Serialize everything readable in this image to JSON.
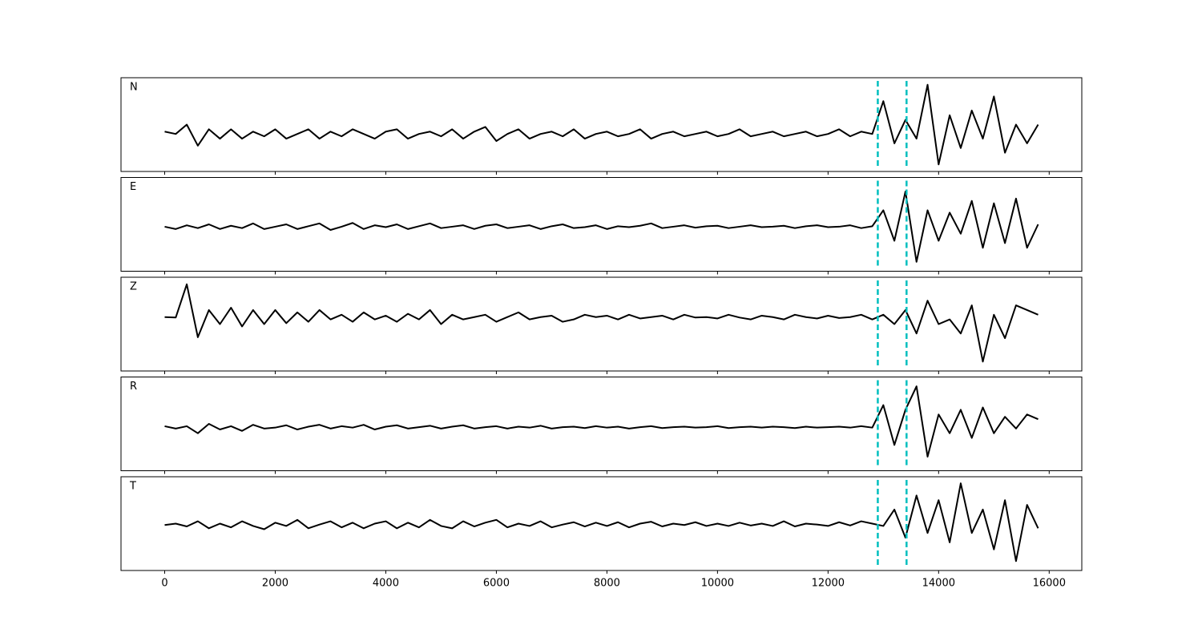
{
  "chart_data": {
    "type": "line",
    "x": [
      0,
      200,
      400,
      600,
      800,
      1000,
      1200,
      1400,
      1600,
      1800,
      2000,
      2200,
      2400,
      2600,
      2800,
      3000,
      3200,
      3400,
      3600,
      3800,
      4000,
      4200,
      4400,
      4600,
      4800,
      5000,
      5200,
      5400,
      5600,
      5800,
      6000,
      6200,
      6400,
      6600,
      6800,
      7000,
      7200,
      7400,
      7600,
      7800,
      8000,
      8200,
      8400,
      8600,
      8800,
      9000,
      9200,
      9400,
      9600,
      9800,
      10000,
      10200,
      10400,
      10600,
      10800,
      11000,
      11200,
      11400,
      11600,
      11800,
      12000,
      12200,
      12400,
      12600,
      12800,
      13000,
      13200,
      13400,
      13600,
      13800,
      14000,
      14200,
      14400,
      14600,
      14800,
      15000,
      15200,
      15400,
      15600,
      15800
    ],
    "xlim": [
      -790,
      16590
    ],
    "xticks": [
      0,
      2000,
      4000,
      6000,
      8000,
      10000,
      12000,
      14000,
      16000
    ],
    "ylim": [
      -1,
      1
    ],
    "vlines": [
      12900,
      13420
    ],
    "vline_color": "#00bfbf",
    "series": [
      {
        "name": "N",
        "color": "#000000",
        "values": [
          -0.15,
          -0.2,
          0.0,
          -0.45,
          -0.1,
          -0.3,
          -0.1,
          -0.3,
          -0.15,
          -0.25,
          -0.1,
          -0.3,
          -0.2,
          -0.1,
          -0.3,
          -0.15,
          -0.25,
          -0.1,
          -0.2,
          -0.3,
          -0.15,
          -0.1,
          -0.3,
          -0.2,
          -0.15,
          -0.25,
          -0.1,
          -0.3,
          -0.15,
          -0.05,
          -0.35,
          -0.2,
          -0.1,
          -0.3,
          -0.2,
          -0.15,
          -0.25,
          -0.1,
          -0.3,
          -0.2,
          -0.15,
          -0.25,
          -0.2,
          -0.1,
          -0.3,
          -0.2,
          -0.15,
          -0.25,
          -0.2,
          -0.15,
          -0.25,
          -0.2,
          -0.1,
          -0.25,
          -0.2,
          -0.15,
          -0.25,
          -0.2,
          -0.15,
          -0.25,
          -0.2,
          -0.1,
          -0.25,
          -0.15,
          -0.2,
          0.5,
          -0.4,
          0.1,
          -0.3,
          0.85,
          -0.85,
          0.2,
          -0.5,
          0.3,
          -0.3,
          0.6,
          -0.6,
          0.0,
          -0.4,
          0.0
        ]
      },
      {
        "name": "E",
        "color": "#000000",
        "values": [
          -0.05,
          -0.1,
          -0.02,
          -0.08,
          0.0,
          -0.1,
          -0.03,
          -0.08,
          0.02,
          -0.1,
          -0.05,
          0.0,
          -0.1,
          -0.04,
          0.02,
          -0.12,
          -0.05,
          0.03,
          -0.1,
          -0.02,
          -0.06,
          0.0,
          -0.1,
          -0.04,
          0.02,
          -0.08,
          -0.05,
          -0.02,
          -0.1,
          -0.03,
          0.0,
          -0.08,
          -0.05,
          -0.02,
          -0.1,
          -0.04,
          0.0,
          -0.08,
          -0.06,
          -0.02,
          -0.1,
          -0.04,
          -0.06,
          -0.03,
          0.02,
          -0.08,
          -0.05,
          -0.02,
          -0.07,
          -0.04,
          -0.03,
          -0.08,
          -0.05,
          -0.02,
          -0.06,
          -0.05,
          -0.03,
          -0.08,
          -0.04,
          -0.02,
          -0.06,
          -0.05,
          -0.02,
          -0.08,
          -0.04,
          0.3,
          -0.35,
          0.7,
          -0.8,
          0.3,
          -0.35,
          0.25,
          -0.2,
          0.5,
          -0.5,
          0.45,
          -0.4,
          0.55,
          -0.5,
          0.0
        ]
      },
      {
        "name": "Z",
        "color": "#000000",
        "values": [
          0.15,
          0.14,
          0.85,
          -0.28,
          0.3,
          0.0,
          0.35,
          -0.05,
          0.3,
          0.0,
          0.3,
          0.02,
          0.25,
          0.05,
          0.3,
          0.1,
          0.2,
          0.05,
          0.25,
          0.1,
          0.18,
          0.05,
          0.22,
          0.1,
          0.3,
          0.0,
          0.2,
          0.1,
          0.15,
          0.2,
          0.05,
          0.15,
          0.25,
          0.1,
          0.15,
          0.18,
          0.05,
          0.1,
          0.2,
          0.15,
          0.18,
          0.1,
          0.2,
          0.12,
          0.15,
          0.18,
          0.1,
          0.2,
          0.14,
          0.15,
          0.12,
          0.2,
          0.14,
          0.1,
          0.18,
          0.15,
          0.1,
          0.2,
          0.15,
          0.12,
          0.18,
          0.13,
          0.15,
          0.2,
          0.1,
          0.2,
          0.0,
          0.3,
          -0.2,
          0.5,
          0.0,
          0.1,
          -0.2,
          0.4,
          -0.8,
          0.2,
          -0.3,
          0.4,
          0.3,
          0.2
        ]
      },
      {
        "name": "R",
        "color": "#000000",
        "values": [
          -0.05,
          -0.1,
          -0.05,
          -0.2,
          0.0,
          -0.12,
          -0.05,
          -0.15,
          -0.02,
          -0.1,
          -0.08,
          -0.03,
          -0.12,
          -0.06,
          -0.02,
          -0.1,
          -0.05,
          -0.08,
          -0.02,
          -0.12,
          -0.06,
          -0.03,
          -0.1,
          -0.07,
          -0.04,
          -0.1,
          -0.06,
          -0.03,
          -0.1,
          -0.07,
          -0.05,
          -0.1,
          -0.06,
          -0.08,
          -0.04,
          -0.1,
          -0.07,
          -0.06,
          -0.09,
          -0.05,
          -0.08,
          -0.06,
          -0.1,
          -0.07,
          -0.05,
          -0.09,
          -0.07,
          -0.06,
          -0.08,
          -0.07,
          -0.05,
          -0.09,
          -0.07,
          -0.06,
          -0.08,
          -0.06,
          -0.07,
          -0.09,
          -0.06,
          -0.08,
          -0.07,
          -0.06,
          -0.08,
          -0.05,
          -0.08,
          0.4,
          -0.45,
          0.3,
          0.8,
          -0.7,
          0.2,
          -0.2,
          0.3,
          -0.3,
          0.35,
          -0.2,
          0.15,
          -0.1,
          0.2,
          0.1
        ]
      },
      {
        "name": "T",
        "color": "#000000",
        "values": [
          -0.03,
          0.0,
          -0.06,
          0.05,
          -0.1,
          0.0,
          -0.08,
          0.05,
          -0.05,
          -0.12,
          0.02,
          -0.05,
          0.08,
          -0.1,
          -0.02,
          0.05,
          -0.08,
          0.02,
          -0.1,
          0.0,
          0.05,
          -0.1,
          0.02,
          -0.08,
          0.08,
          -0.05,
          -0.1,
          0.05,
          -0.06,
          0.02,
          0.08,
          -0.08,
          0.0,
          -0.05,
          0.05,
          -0.08,
          -0.02,
          0.03,
          -0.06,
          0.02,
          -0.05,
          0.03,
          -0.08,
          0.0,
          0.04,
          -0.06,
          0.0,
          -0.03,
          0.03,
          -0.05,
          0.0,
          -0.05,
          0.02,
          -0.04,
          0.0,
          -0.05,
          0.05,
          -0.06,
          0.0,
          -0.02,
          -0.05,
          0.03,
          -0.04,
          0.05,
          0.0,
          -0.05,
          0.3,
          -0.3,
          0.6,
          -0.2,
          0.5,
          -0.4,
          0.86,
          -0.2,
          0.3,
          -0.55,
          0.5,
          -0.8,
          0.4,
          -0.1
        ]
      }
    ]
  }
}
